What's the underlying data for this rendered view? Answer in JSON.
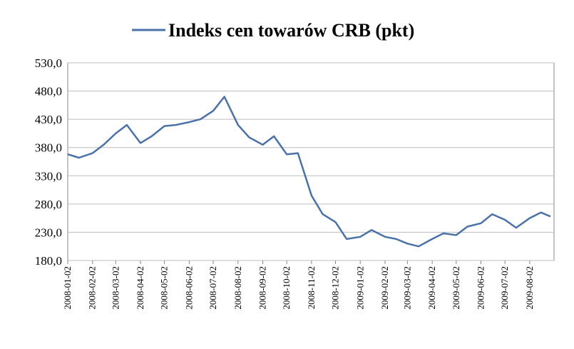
{
  "chart_data": {
    "type": "line",
    "title": "",
    "xlabel": "",
    "ylabel": "",
    "ylim": [
      180,
      530
    ],
    "y_ticks": [
      "180,0",
      "230,0",
      "280,0",
      "330,0",
      "380,0",
      "430,0",
      "480,0",
      "530,0"
    ],
    "x_ticks": [
      "2008-01-02",
      "2008-02-02",
      "2008-03-02",
      "2008-04-02",
      "2008-05-02",
      "2008-06-02",
      "2008-07-02",
      "2008-08-02",
      "2008-09-02",
      "2008-10-02",
      "2008-11-02",
      "2008-12-02",
      "2009-01-02",
      "2009-02-02",
      "2009-03-02",
      "2009-04-02",
      "2009-05-02",
      "2009-06-02",
      "2009-07-02",
      "2009-08-02"
    ],
    "grid": true,
    "legend_position": "top",
    "line_color": "#4a72a8",
    "series": [
      {
        "name": "Indeks cen towarów CRB (pkt)",
        "x": [
          "2008-01-02",
          "2008-01-16",
          "2008-02-02",
          "2008-02-16",
          "2008-03-02",
          "2008-03-16",
          "2008-04-02",
          "2008-04-16",
          "2008-05-02",
          "2008-05-16",
          "2008-06-02",
          "2008-06-16",
          "2008-07-02",
          "2008-07-16",
          "2008-08-02",
          "2008-08-16",
          "2008-09-02",
          "2008-09-16",
          "2008-10-02",
          "2008-10-16",
          "2008-11-02",
          "2008-11-16",
          "2008-12-02",
          "2008-12-16",
          "2009-01-02",
          "2009-01-16",
          "2009-02-02",
          "2009-02-16",
          "2009-03-02",
          "2009-03-16",
          "2009-04-02",
          "2009-04-16",
          "2009-05-02",
          "2009-05-16",
          "2009-06-02",
          "2009-06-16",
          "2009-07-02",
          "2009-07-16",
          "2009-08-02",
          "2009-08-16",
          "2009-08-28"
        ],
        "values": [
          368,
          362,
          370,
          385,
          405,
          420,
          388,
          400,
          418,
          420,
          425,
          430,
          445,
          470,
          420,
          398,
          385,
          400,
          368,
          370,
          295,
          262,
          248,
          218,
          222,
          234,
          222,
          218,
          210,
          205,
          218,
          228,
          225,
          240,
          246,
          262,
          252,
          238,
          255,
          265,
          258
        ]
      }
    ]
  }
}
